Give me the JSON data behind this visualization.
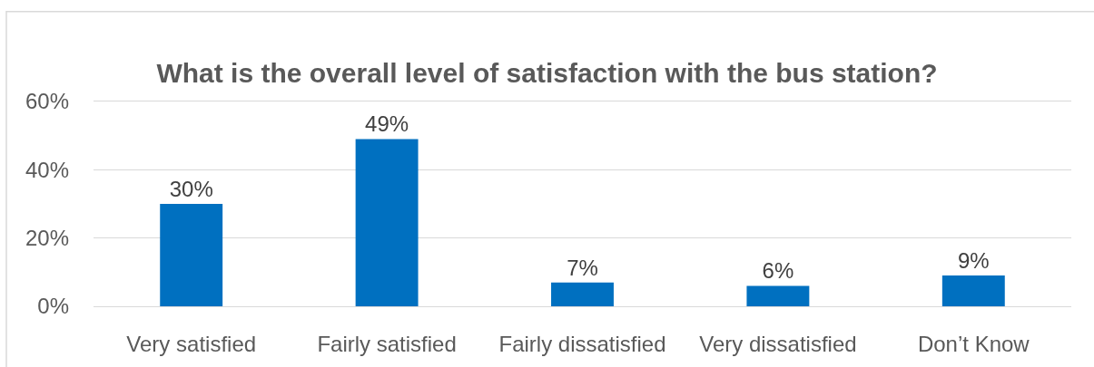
{
  "chart_data": {
    "type": "bar",
    "title": "What is the overall level of satisfaction with the bus station?",
    "categories": [
      "Very satisfied",
      "Fairly satisfied",
      "Fairly dissatisfied",
      "Very dissatisfied",
      "Don’t Know"
    ],
    "values": [
      30,
      49,
      7,
      6,
      9
    ],
    "color": "#0070c0",
    "value_labels": [
      "30%",
      "49%",
      "7%",
      "6%",
      "9%"
    ],
    "ylim": [
      0,
      60
    ],
    "yticks": [
      {
        "value": 0,
        "label": "0%"
      },
      {
        "value": 20,
        "label": "20%"
      },
      {
        "value": 40,
        "label": "40%"
      },
      {
        "value": 60,
        "label": "60%"
      }
    ],
    "grid": "y"
  }
}
